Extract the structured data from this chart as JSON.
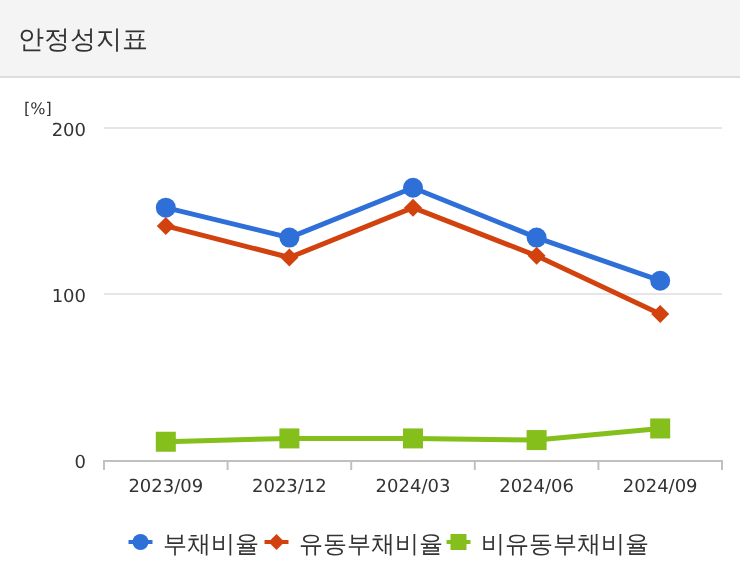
{
  "chart_data": {
    "type": "line",
    "title": "안정성지표",
    "ylabel": "[%]",
    "categories": [
      "2023/09",
      "2023/12",
      "2024/03",
      "2024/06",
      "2024/09"
    ],
    "series": [
      {
        "name": "부채비율",
        "color": "#2f6fd8",
        "marker": "circle",
        "values": [
          152,
          134,
          164,
          134,
          108
        ]
      },
      {
        "name": "유동부채비율",
        "color": "#d1420f",
        "marker": "diamond",
        "values": [
          141,
          122,
          152,
          123,
          88
        ]
      },
      {
        "name": "비유동부채비율",
        "color": "#84bf1c",
        "marker": "square",
        "values": [
          11,
          13,
          13,
          12,
          19
        ]
      }
    ],
    "ylim": [
      0,
      200
    ],
    "yticks": [
      0,
      100,
      200
    ],
    "grid": "y",
    "legend": "bottom"
  }
}
